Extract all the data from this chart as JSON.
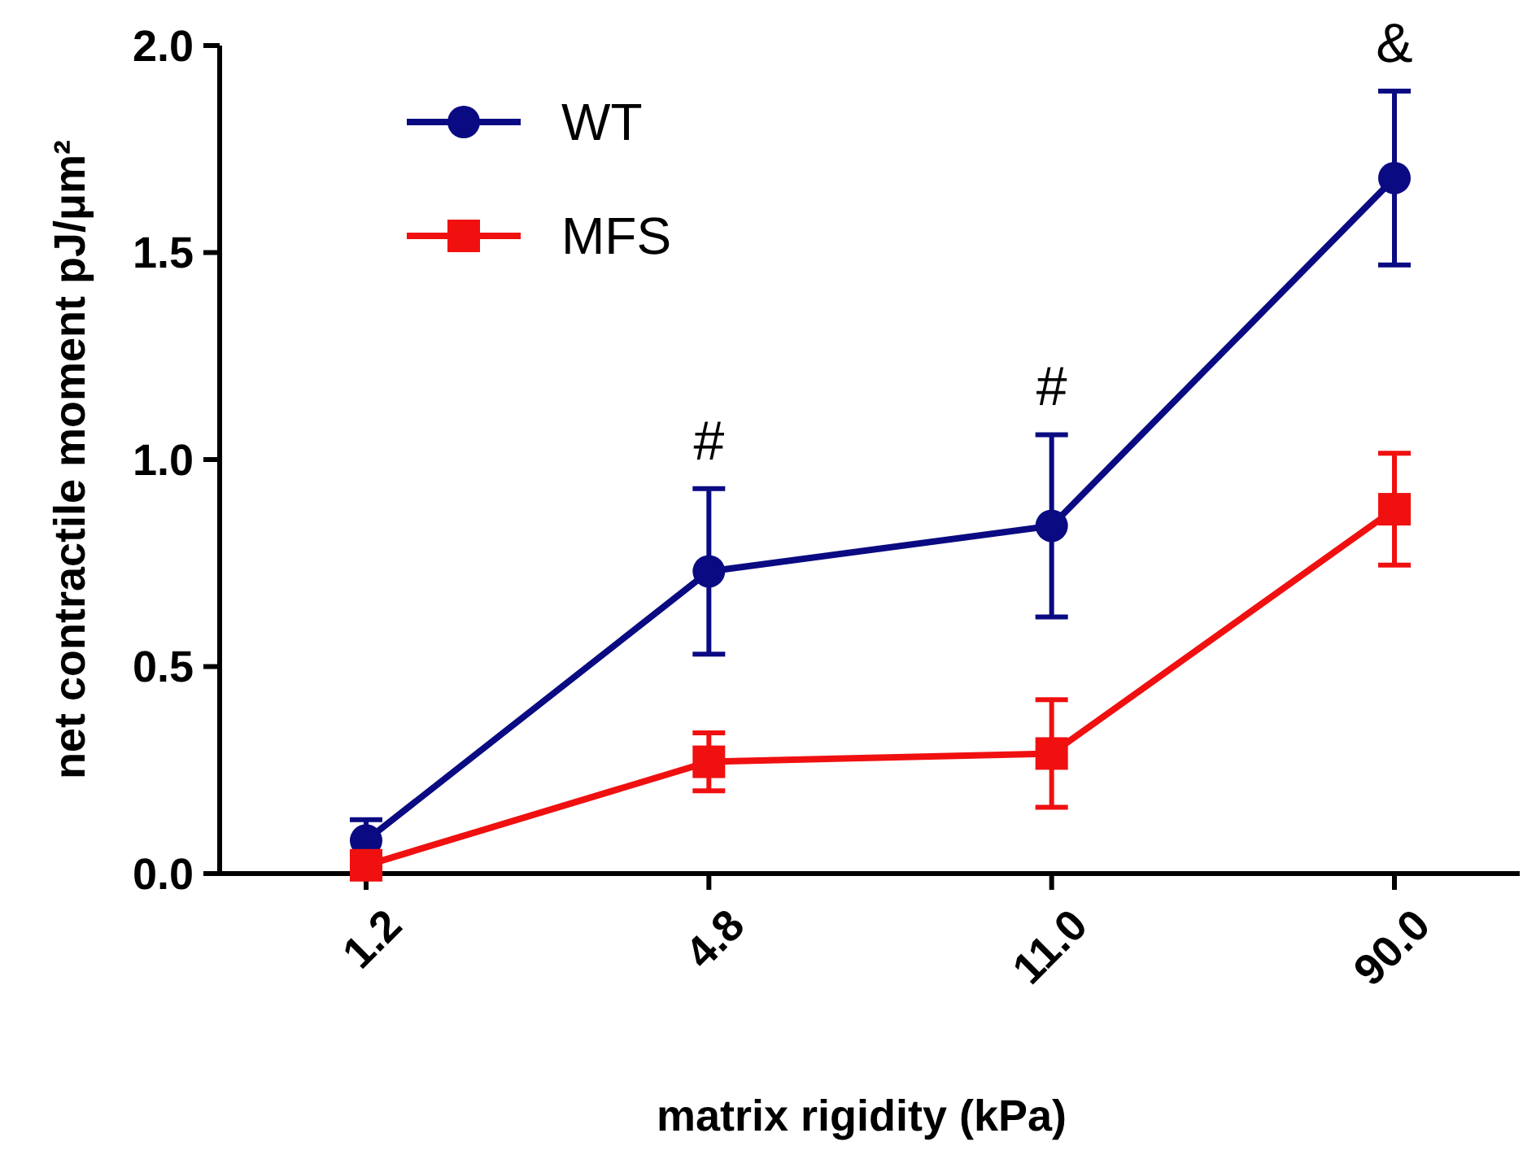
{
  "chart_data": {
    "type": "line",
    "xlabel": "matrix rigidity (kPa)",
    "ylabel": "net contractile moment pJ/μm²",
    "categories": [
      "1.2",
      "4.8",
      "11.0",
      "90.0"
    ],
    "series": [
      {
        "name": "WT",
        "color": "#0a0a82",
        "marker": "circle",
        "values": [
          0.08,
          0.73,
          0.84,
          1.68
        ],
        "errors": [
          0.05,
          0.2,
          0.22,
          0.21
        ]
      },
      {
        "name": "MFS",
        "color": "#f01010",
        "marker": "square",
        "values": [
          0.02,
          0.27,
          0.29,
          0.88
        ],
        "errors": [
          0.02,
          0.07,
          0.13,
          0.135
        ]
      }
    ],
    "ylim": [
      0,
      2
    ],
    "yticks": [
      {
        "value": 0,
        "label": "0.0"
      },
      {
        "value": 0.5,
        "label": "0.5"
      },
      {
        "value": 1,
        "label": "1.0"
      },
      {
        "value": 1.5,
        "label": "1.5"
      },
      {
        "value": 2,
        "label": "2.0"
      }
    ],
    "legend": "top left",
    "grid": false,
    "annotations": [
      {
        "text": "#",
        "x": "4.8",
        "y": 0.73
      },
      {
        "text": "#",
        "x": "11.0",
        "y": 0.84
      },
      {
        "text": "&",
        "x": "90.0",
        "y": 1.68
      }
    ]
  }
}
